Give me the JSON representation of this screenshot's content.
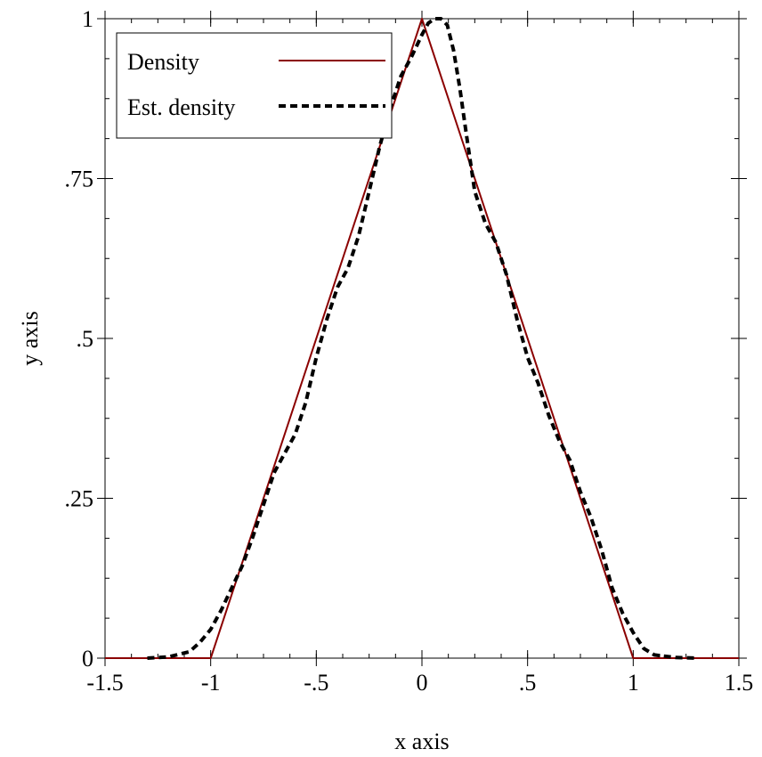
{
  "chart_data": {
    "type": "line",
    "title": "",
    "xlabel": "x axis",
    "ylabel": "y axis",
    "xlim": [
      -1.5,
      1.5
    ],
    "ylim": [
      0,
      1
    ],
    "x_ticks": [
      {
        "value": -1.5,
        "label": "-1.5"
      },
      {
        "value": -1,
        "label": "-1"
      },
      {
        "value": -0.5,
        "label": "-.5"
      },
      {
        "value": 0,
        "label": "0"
      },
      {
        "value": 0.5,
        "label": ".5"
      },
      {
        "value": 1,
        "label": "1"
      },
      {
        "value": 1.5,
        "label": "1.5"
      }
    ],
    "y_ticks": [
      {
        "value": 0,
        "label": "0"
      },
      {
        "value": 0.25,
        "label": ".25"
      },
      {
        "value": 0.5,
        "label": ".5"
      },
      {
        "value": 0.75,
        "label": ".75"
      },
      {
        "value": 1,
        "label": "1"
      }
    ],
    "minor_tick_step": 0.125,
    "grid": false,
    "legend_position": "top-left",
    "series": [
      {
        "name": "Density",
        "color": "#8b0000",
        "style": "solid",
        "x": [
          -1.5,
          -1.0,
          0.0,
          1.0,
          1.5
        ],
        "y": [
          0,
          0,
          1,
          0,
          0
        ]
      },
      {
        "name": "Est. density",
        "color": "#000000",
        "style": "dashed",
        "x": [
          -1.3,
          -1.2,
          -1.1,
          -1.05,
          -1.0,
          -0.95,
          -0.9,
          -0.85,
          -0.8,
          -0.75,
          -0.7,
          -0.65,
          -0.6,
          -0.55,
          -0.5,
          -0.45,
          -0.4,
          -0.35,
          -0.3,
          -0.25,
          -0.2,
          -0.15,
          -0.1,
          -0.05,
          0.0,
          0.03,
          0.06,
          0.09,
          0.12,
          0.15,
          0.18,
          0.21,
          0.25,
          0.3,
          0.35,
          0.4,
          0.45,
          0.5,
          0.55,
          0.6,
          0.65,
          0.7,
          0.75,
          0.8,
          0.85,
          0.9,
          0.95,
          1.0,
          1.05,
          1.1,
          1.2,
          1.3
        ],
        "y": [
          0.0,
          0.002,
          0.01,
          0.025,
          0.045,
          0.075,
          0.11,
          0.145,
          0.19,
          0.24,
          0.29,
          0.32,
          0.35,
          0.4,
          0.47,
          0.53,
          0.58,
          0.61,
          0.66,
          0.73,
          0.8,
          0.86,
          0.91,
          0.94,
          0.975,
          0.993,
          1.0,
          1.0,
          0.99,
          0.95,
          0.89,
          0.82,
          0.73,
          0.68,
          0.65,
          0.6,
          0.53,
          0.47,
          0.43,
          0.38,
          0.34,
          0.31,
          0.26,
          0.22,
          0.17,
          0.11,
          0.07,
          0.04,
          0.015,
          0.005,
          0.001,
          0.0
        ]
      }
    ]
  }
}
